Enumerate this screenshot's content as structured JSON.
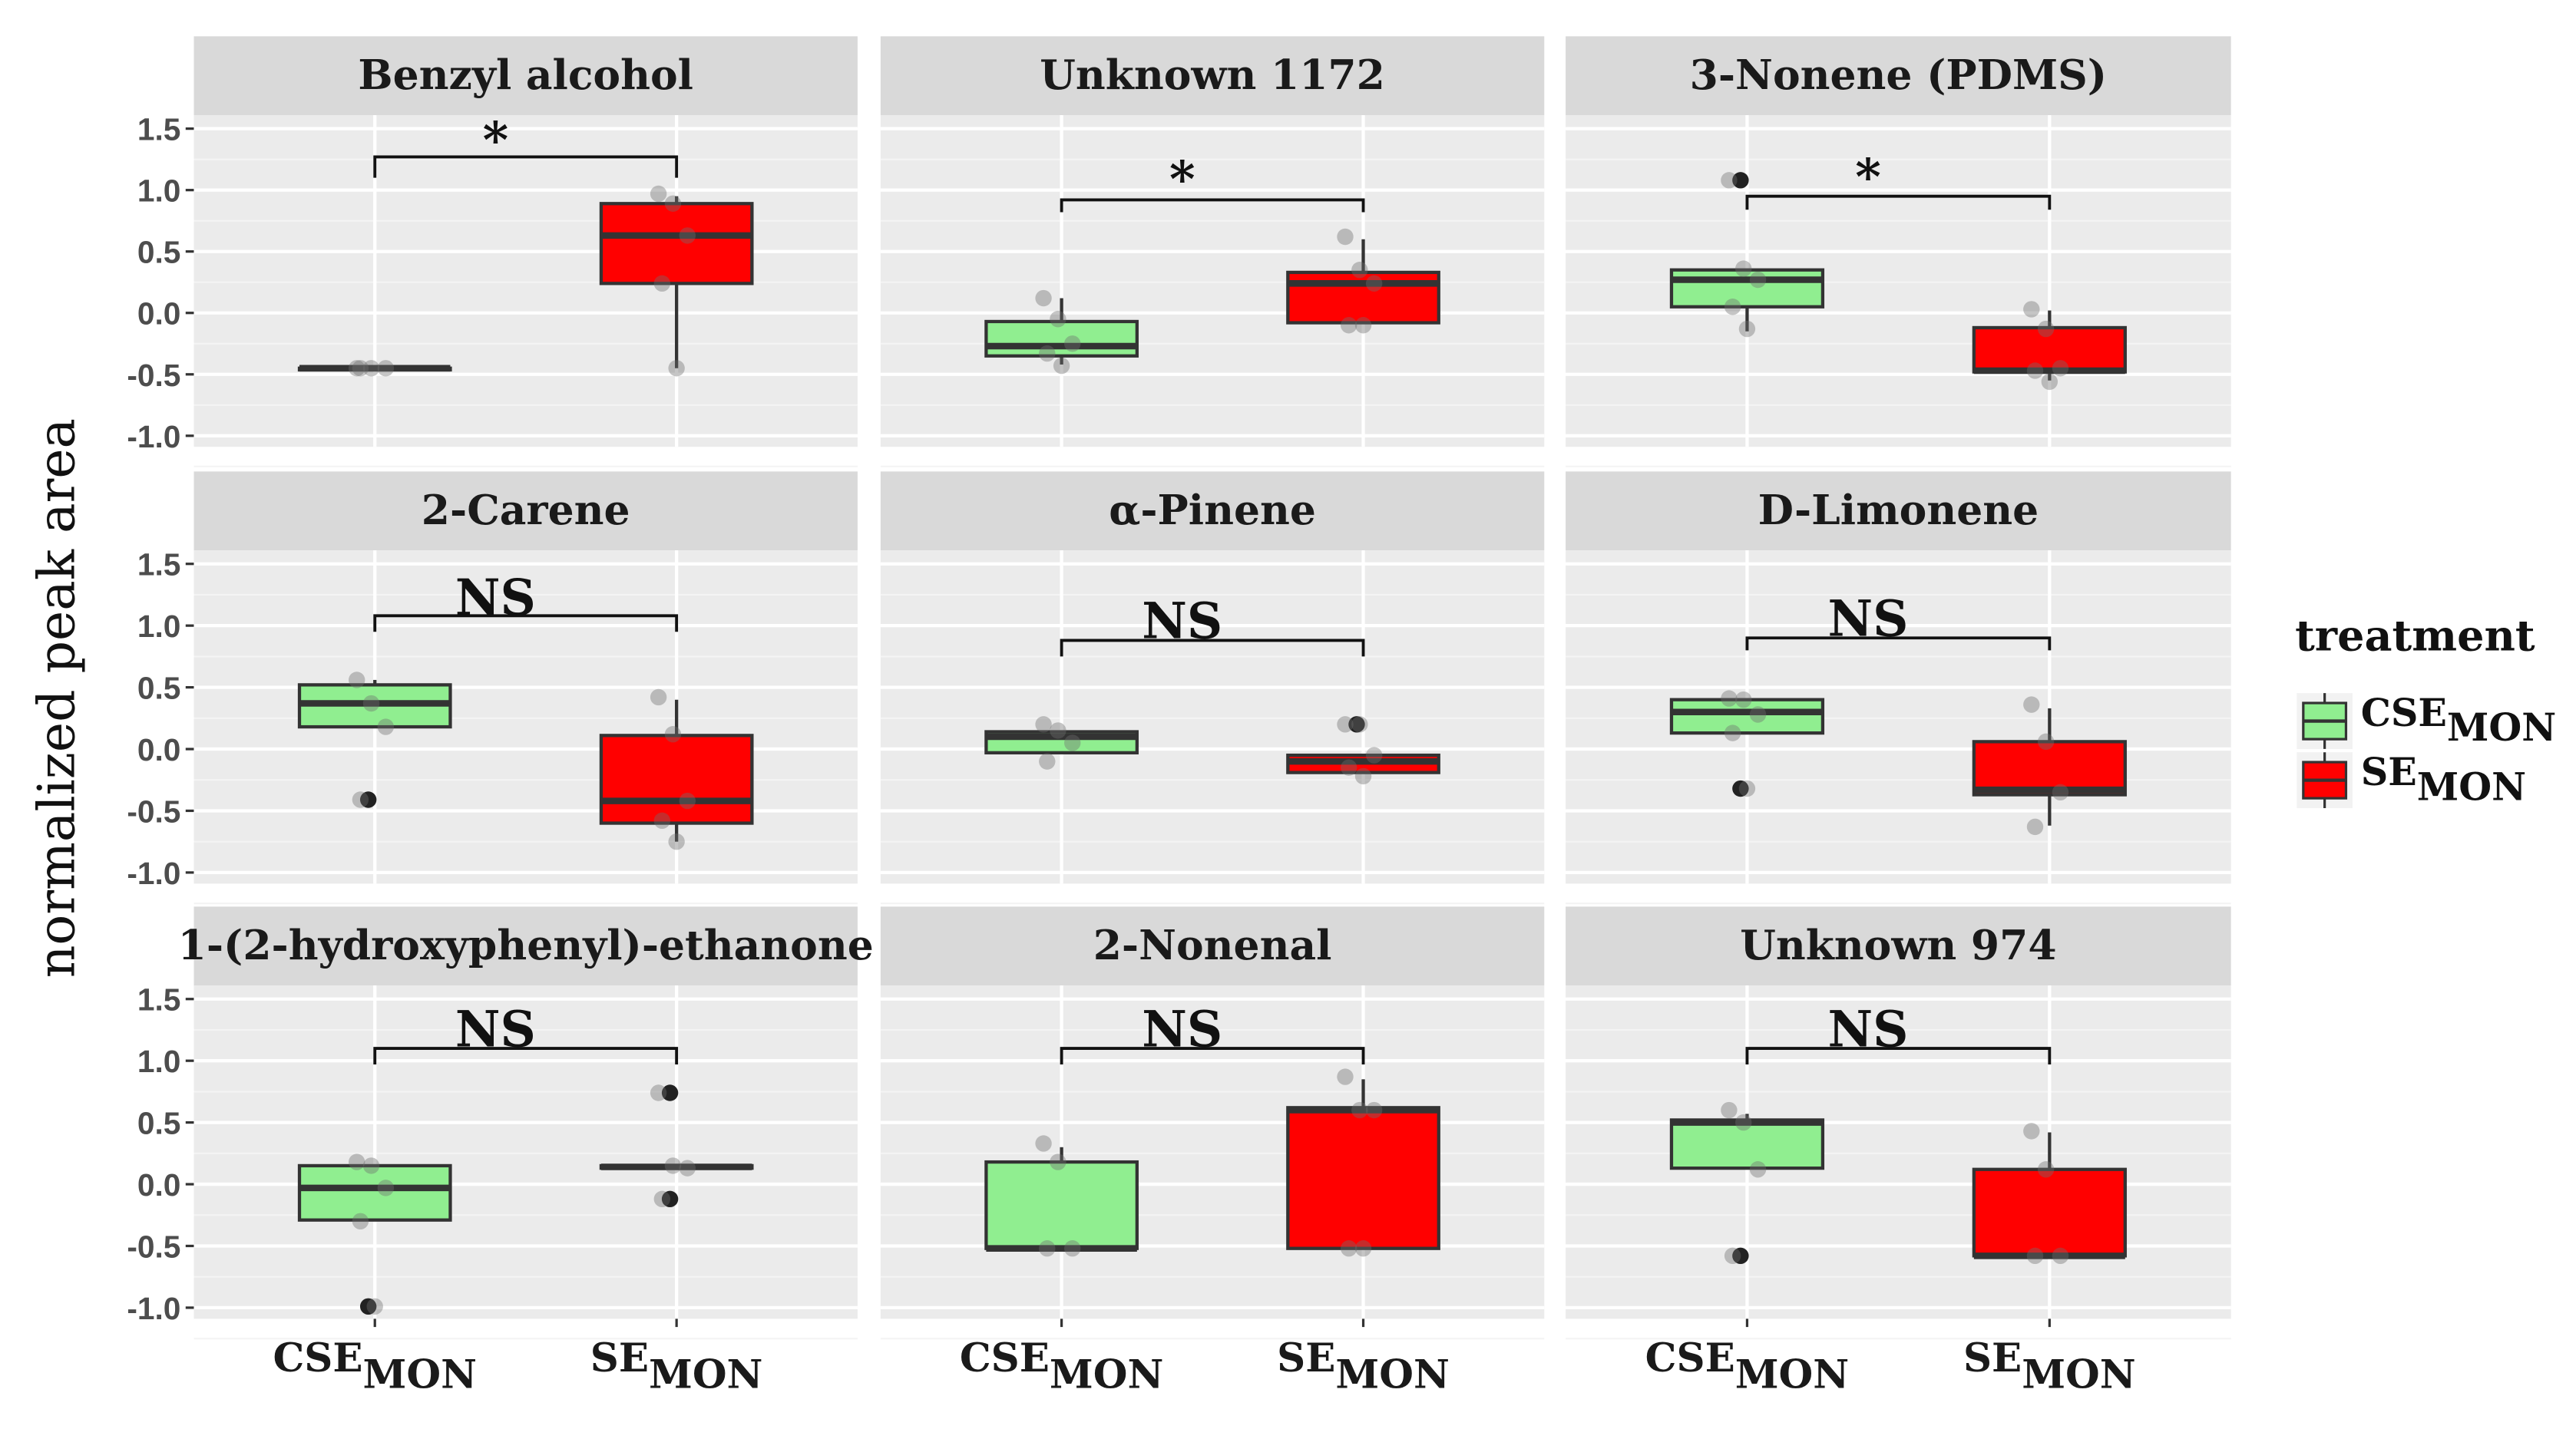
{
  "chart_data": {
    "type": "box",
    "ylabel": "normalized peak area",
    "ylim": [
      -1.09,
      1.61
    ],
    "yticks": [
      1.5,
      1.0,
      0.5,
      0.0,
      -0.5,
      -1.0
    ],
    "ytick_labels": [
      "1.5",
      "1.0",
      "0.5",
      "0.0",
      "-0.5",
      "-1.0"
    ],
    "categories": [
      {
        "base": "CSE",
        "sub": "MON"
      },
      {
        "base": "SE",
        "sub": "MON"
      }
    ],
    "legend": {
      "title": "treatment",
      "position": "right",
      "entries": [
        {
          "base": "CSE",
          "sub": "MON",
          "color": "#90ee90"
        },
        {
          "base": "SE",
          "sub": "MON",
          "color": "#ff0000"
        }
      ]
    },
    "colors": {
      "CSE": "#90ee90",
      "SE": "#ff0000",
      "strip": "#d9d9d9",
      "panel": "#ebebeb"
    },
    "panels": [
      {
        "title": "Benzyl alcohol",
        "sig": "*",
        "bracket": [
          1.27,
          1.1,
          1.1
        ],
        "sig_y": 1.4,
        "boxes": [
          {
            "q1": -0.45,
            "med": -0.45,
            "q3": -0.45,
            "lo": -0.45,
            "hi": -0.45,
            "outliers": [],
            "points": [
              -0.45,
              -0.45,
              -0.45,
              -0.45
            ]
          },
          {
            "q1": 0.24,
            "med": 0.63,
            "q3": 0.89,
            "lo": -0.45,
            "hi": 0.95,
            "outliers": [],
            "points": [
              0.97,
              0.89,
              0.63,
              0.24,
              -0.45
            ]
          }
        ]
      },
      {
        "title": "Unknown 1172",
        "sig": "*",
        "bracket": [
          0.92,
          0.82,
          0.82
        ],
        "sig_y": 1.08,
        "boxes": [
          {
            "q1": -0.35,
            "med": -0.27,
            "q3": -0.07,
            "lo": -0.42,
            "hi": 0.12,
            "outliers": [],
            "points": [
              0.12,
              -0.05,
              -0.25,
              -0.33,
              -0.43
            ]
          },
          {
            "q1": -0.08,
            "med": 0.24,
            "q3": 0.33,
            "lo": -0.08,
            "hi": 0.6,
            "outliers": [],
            "points": [
              0.62,
              0.35,
              0.24,
              -0.1,
              -0.1
            ]
          }
        ]
      },
      {
        "title": "3-Nonene (PDMS)",
        "sig": "*",
        "bracket": [
          0.95,
          0.84,
          0.84
        ],
        "sig_y": 1.1,
        "boxes": [
          {
            "q1": 0.05,
            "med": 0.27,
            "q3": 0.35,
            "lo": -0.15,
            "hi": 0.35,
            "outliers": [
              1.08
            ],
            "points": [
              1.08,
              0.36,
              0.27,
              0.05,
              -0.13
            ]
          },
          {
            "q1": -0.48,
            "med": -0.47,
            "q3": -0.12,
            "lo": -0.55,
            "hi": 0.02,
            "outliers": [],
            "points": [
              0.03,
              -0.13,
              -0.45,
              -0.47,
              -0.56
            ]
          }
        ]
      },
      {
        "title": "2-Carene",
        "sig": "NS",
        "bracket": [
          1.08,
          0.95,
          0.95
        ],
        "sig_y": 1.22,
        "boxes": [
          {
            "q1": 0.18,
            "med": 0.37,
            "q3": 0.52,
            "lo": 0.18,
            "hi": 0.56,
            "outliers": [
              -0.41
            ],
            "points": [
              0.56,
              0.37,
              0.18,
              -0.41
            ]
          },
          {
            "q1": -0.6,
            "med": -0.42,
            "q3": 0.11,
            "lo": -0.75,
            "hi": 0.4,
            "outliers": [],
            "points": [
              0.42,
              0.12,
              -0.42,
              -0.58,
              -0.75
            ]
          }
        ]
      },
      {
        "title": "α-Pinene",
        "sig": "NS",
        "bracket": [
          0.88,
          0.75,
          0.75
        ],
        "sig_y": 1.03,
        "boxes": [
          {
            "q1": -0.03,
            "med": 0.1,
            "q3": 0.14,
            "lo": -0.03,
            "hi": 0.14,
            "outliers": [],
            "points": [
              0.2,
              0.15,
              0.05,
              -0.1
            ]
          },
          {
            "q1": -0.19,
            "med": -0.1,
            "q3": -0.05,
            "lo": -0.19,
            "hi": -0.05,
            "outliers": [
              0.2
            ],
            "points": [
              0.2,
              0.2,
              -0.05,
              -0.15,
              -0.22
            ]
          }
        ]
      },
      {
        "title": "D-Limonene",
        "sig": "NS",
        "bracket": [
          0.9,
          0.8,
          0.8
        ],
        "sig_y": 1.05,
        "boxes": [
          {
            "q1": 0.13,
            "med": 0.3,
            "q3": 0.4,
            "lo": 0.13,
            "hi": 0.4,
            "outliers": [
              -0.32
            ],
            "points": [
              0.41,
              0.4,
              0.28,
              0.13,
              -0.32
            ]
          },
          {
            "q1": -0.37,
            "med": -0.33,
            "q3": 0.06,
            "lo": -0.62,
            "hi": 0.33,
            "outliers": [],
            "points": [
              0.36,
              0.06,
              -0.35,
              -0.63
            ]
          }
        ]
      },
      {
        "title": "1-(2-hydroxyphenyl)-ethanone",
        "sig": "NS",
        "bracket": [
          1.1,
          0.97,
          0.97
        ],
        "sig_y": 1.25,
        "boxes": [
          {
            "q1": -0.29,
            "med": -0.03,
            "q3": 0.15,
            "lo": -0.29,
            "hi": 0.15,
            "outliers": [
              -0.99
            ],
            "points": [
              0.18,
              0.15,
              -0.03,
              -0.3,
              -0.99
            ]
          },
          {
            "q1": 0.13,
            "med": 0.14,
            "q3": 0.15,
            "lo": 0.13,
            "hi": 0.15,
            "outliers": [
              0.74,
              -0.12
            ],
            "points": [
              0.74,
              0.15,
              0.13,
              -0.12
            ]
          }
        ]
      },
      {
        "title": "2-Nonenal",
        "sig": "NS",
        "bracket": [
          1.1,
          0.97,
          0.97
        ],
        "sig_y": 1.25,
        "boxes": [
          {
            "q1": -0.52,
            "med": -0.52,
            "q3": 0.18,
            "lo": -0.52,
            "hi": 0.3,
            "outliers": [],
            "points": [
              0.33,
              0.18,
              -0.52,
              -0.52
            ]
          },
          {
            "q1": -0.52,
            "med": 0.6,
            "q3": 0.62,
            "lo": -0.52,
            "hi": 0.85,
            "outliers": [],
            "points": [
              0.87,
              0.6,
              0.6,
              -0.52,
              -0.52
            ]
          }
        ]
      },
      {
        "title": "Unknown 974",
        "sig": "NS",
        "bracket": [
          1.1,
          0.97,
          0.97
        ],
        "sig_y": 1.25,
        "boxes": [
          {
            "q1": 0.13,
            "med": 0.5,
            "q3": 0.52,
            "lo": 0.13,
            "hi": 0.57,
            "outliers": [
              -0.58
            ],
            "points": [
              0.6,
              0.5,
              0.12,
              -0.58
            ]
          },
          {
            "q1": -0.58,
            "med": -0.58,
            "q3": 0.12,
            "lo": -0.58,
            "hi": 0.42,
            "outliers": [],
            "points": [
              0.43,
              0.12,
              -0.58,
              -0.58
            ]
          }
        ]
      }
    ]
  }
}
